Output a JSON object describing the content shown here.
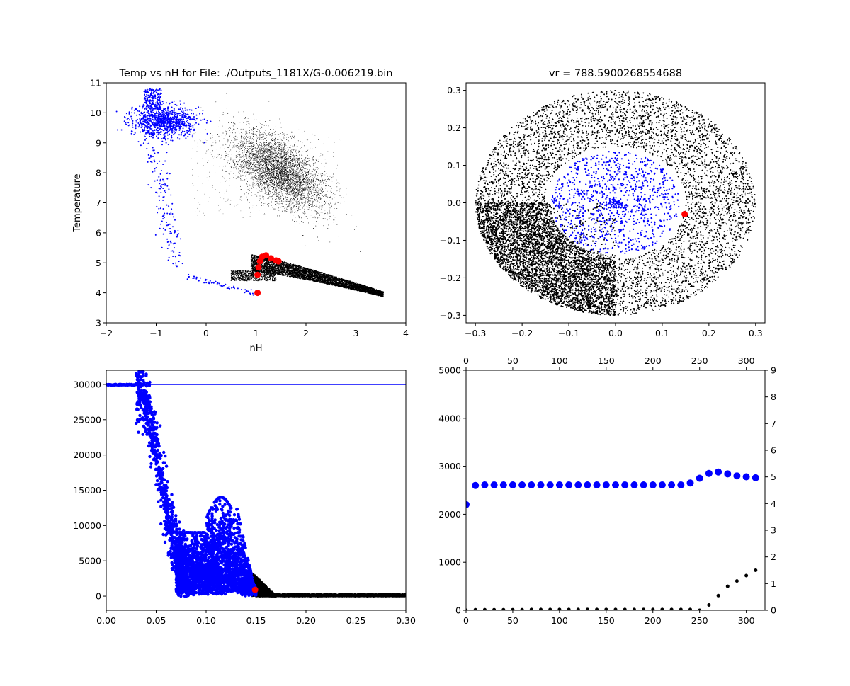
{
  "colors": {
    "blue": "#0000ff",
    "black": "#000000",
    "red": "#ff0000"
  },
  "chart_data": [
    {
      "type": "scatter",
      "title": "Temp vs nH for File: ./Outputs_1181X/G-0.006219.bin",
      "xlabel": "nH",
      "ylabel": "Temperature",
      "xlim": [
        -2,
        4
      ],
      "ylim": [
        3,
        11
      ],
      "xticks": [
        "−2",
        "−1",
        "0",
        "1",
        "2",
        "3",
        "4"
      ],
      "yticks": [
        "3",
        "4",
        "5",
        "6",
        "7",
        "8",
        "9",
        "10",
        "11"
      ],
      "series": [
        {
          "color": "black",
          "marker": "tiny",
          "description_points": "hot diffuse gas cloud",
          "cloud_center": [
            1.5,
            8.0
          ]
        },
        {
          "color": "black",
          "marker": "dense",
          "band": [
            [
              0.9,
              5.0
            ],
            [
              2.5,
              4.5
            ],
            [
              3.55,
              3.95
            ]
          ]
        },
        {
          "color": "blue",
          "marker": "small",
          "track": [
            [
              -1.2,
              10.7
            ],
            [
              -1.0,
              9.8
            ],
            [
              0.3,
              9.8
            ],
            [
              -0.9,
              8.8
            ],
            [
              -0.7,
              5.5
            ],
            [
              -0.4,
              4.6
            ],
            [
              0.3,
              4.2
            ],
            [
              1.0,
              4.0
            ]
          ]
        },
        {
          "color": "red",
          "marker": "large",
          "points": [
            [
              1.03,
              4.0
            ],
            [
              1.03,
              4.6
            ],
            [
              1.05,
              4.85
            ],
            [
              1.08,
              5.05
            ],
            [
              1.12,
              5.2
            ],
            [
              1.2,
              5.25
            ],
            [
              1.3,
              5.15
            ],
            [
              1.4,
              5.08
            ],
            [
              1.45,
              5.05
            ]
          ]
        }
      ]
    },
    {
      "type": "scatter",
      "title": "vr = 788.5900268554688",
      "xlim": [
        -0.32,
        0.32
      ],
      "ylim": [
        -0.32,
        0.32
      ],
      "xticks": [
        "−0.3",
        "−0.2",
        "−0.1",
        "0.0",
        "0.1",
        "0.2",
        "0.3"
      ],
      "yticks": [
        "−0.3",
        "−0.2",
        "−0.1",
        "0.0",
        "0.1",
        "0.2",
        "0.3"
      ],
      "series": [
        {
          "color": "black",
          "marker": "small",
          "shape": "annulus",
          "inner_radius": 0.15,
          "outer_radius": 0.3
        },
        {
          "color": "blue",
          "marker": "small",
          "shape": "disk",
          "radius": 0.14
        },
        {
          "color": "red",
          "marker": "large",
          "points": [
            [
              0.148,
              -0.03
            ]
          ]
        }
      ]
    },
    {
      "type": "scatter",
      "xlim": [
        0.0,
        0.3
      ],
      "ylim": [
        -2000,
        32000
      ],
      "xticks": [
        "0.00",
        "0.05",
        "0.10",
        "0.15",
        "0.20",
        "0.25",
        "0.30"
      ],
      "yticks": [
        "0",
        "5000",
        "10000",
        "15000",
        "20000",
        "25000",
        "30000"
      ],
      "hline": 30000,
      "series": [
        {
          "color": "blue",
          "marker": "medium",
          "description_points": "decay from 30000 at x≈0.03 to 0 near x≈0.15"
        },
        {
          "color": "black",
          "marker": "medium",
          "points_range": [
            [
              0.15,
              0.3
            ]
          ],
          "value": 0
        },
        {
          "color": "red",
          "marker": "large",
          "points": [
            [
              0.149,
              900
            ]
          ]
        }
      ]
    },
    {
      "type": "scatter",
      "xlim": [
        0,
        320
      ],
      "ylim": [
        0,
        5000
      ],
      "ylim_right": [
        0,
        9
      ],
      "xticks": [
        "0",
        "50",
        "100",
        "150",
        "200",
        "250",
        "300"
      ],
      "yticks": [
        "0",
        "1000",
        "2000",
        "3000",
        "4000",
        "5000"
      ],
      "yticks_right": [
        "0",
        "1",
        "2",
        "3",
        "4",
        "5",
        "6",
        "7",
        "8",
        "9"
      ],
      "series": [
        {
          "color": "blue",
          "marker": "large",
          "axis": "left",
          "x": [
            0,
            10,
            20,
            30,
            40,
            50,
            60,
            70,
            80,
            90,
            100,
            110,
            120,
            130,
            140,
            150,
            160,
            170,
            180,
            190,
            200,
            210,
            220,
            230,
            240,
            250,
            260,
            270,
            280,
            290,
            300,
            310
          ],
          "y": [
            2200,
            2600,
            2610,
            2610,
            2610,
            2610,
            2610,
            2610,
            2610,
            2610,
            2610,
            2610,
            2610,
            2610,
            2610,
            2610,
            2610,
            2610,
            2610,
            2610,
            2610,
            2610,
            2610,
            2610,
            2650,
            2750,
            2850,
            2880,
            2840,
            2800,
            2780,
            2760
          ]
        },
        {
          "color": "black",
          "marker": "small",
          "axis": "right",
          "x": [
            0,
            10,
            20,
            30,
            40,
            50,
            60,
            70,
            80,
            90,
            100,
            110,
            120,
            130,
            140,
            150,
            160,
            170,
            180,
            190,
            200,
            210,
            220,
            230,
            240,
            250,
            260,
            270,
            280,
            290,
            300,
            310
          ],
          "y": [
            0,
            0.02,
            0.02,
            0.02,
            0.02,
            0.02,
            0.02,
            0.03,
            0.03,
            0.03,
            0.03,
            0.03,
            0.03,
            0.03,
            0.03,
            0.03,
            0.03,
            0.03,
            0.03,
            0.03,
            0.03,
            0.03,
            0.03,
            0.03,
            0.03,
            0.0,
            0.2,
            0.55,
            0.9,
            1.1,
            1.3,
            1.5
          ]
        }
      ]
    }
  ]
}
